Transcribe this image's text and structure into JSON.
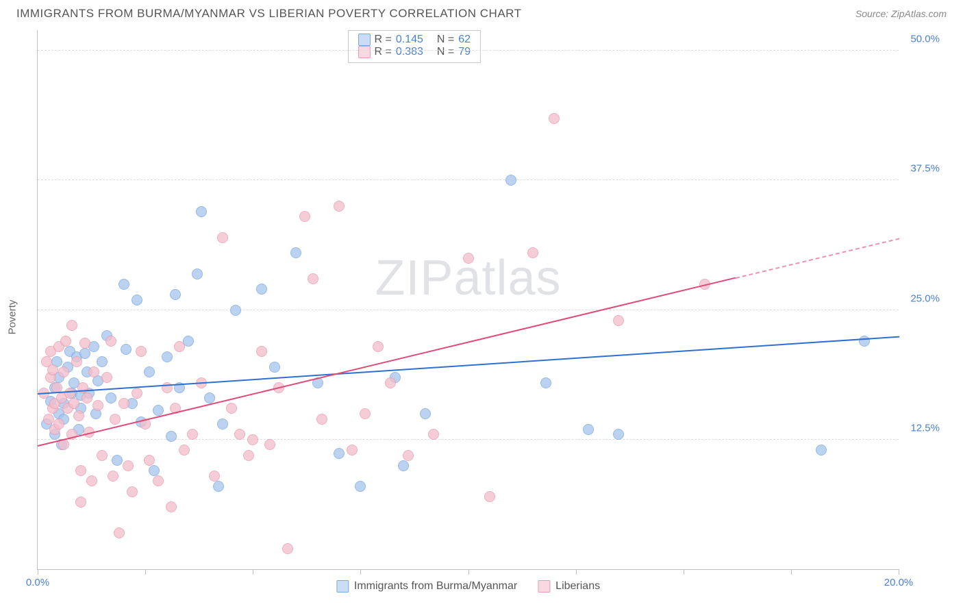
{
  "header": {
    "title": "IMMIGRANTS FROM BURMA/MYANMAR VS LIBERIAN POVERTY CORRELATION CHART",
    "source_prefix": "Source: ",
    "source": "ZipAtlas.com"
  },
  "chart": {
    "type": "scatter",
    "ylabel": "Poverty",
    "watermark": "ZIPatlas",
    "xlim": [
      0,
      20
    ],
    "ylim": [
      0,
      52
    ],
    "xtick_positions": [
      0,
      2.5,
      5,
      7.5,
      10,
      12.5,
      15,
      17.5,
      20
    ],
    "xtick_labels": {
      "0": "0.0%",
      "20": "20.0%"
    },
    "ytick_positions": [
      12.5,
      25.0,
      37.5,
      50.0
    ],
    "ytick_labels": [
      "12.5%",
      "25.0%",
      "37.5%",
      "50.0%"
    ],
    "grid_color": "#dcdcdc",
    "axis_color": "#bfbfbf",
    "tick_label_color": "#4a7fd6",
    "background_color": "#ffffff",
    "point_radius": 8,
    "point_border_width": 1.2,
    "point_fill_opacity": 0.32,
    "series": [
      {
        "id": "burma",
        "label": "Immigrants from Burma/Myanmar",
        "color_border": "#7aa7e0",
        "color_fill": "#a9c6ec",
        "R": "0.145",
        "N": "62",
        "trend": {
          "x1": 0,
          "y1": 17.0,
          "x2": 20,
          "y2": 22.5,
          "color": "#2e6fd0",
          "width": 2.5,
          "dash_from_x": null
        },
        "points": [
          [
            0.2,
            14.0
          ],
          [
            0.3,
            16.2
          ],
          [
            0.4,
            13.0
          ],
          [
            0.4,
            17.5
          ],
          [
            0.45,
            20.0
          ],
          [
            0.5,
            15.0
          ],
          [
            0.5,
            18.5
          ],
          [
            0.55,
            12.0
          ],
          [
            0.6,
            16.0
          ],
          [
            0.6,
            14.5
          ],
          [
            0.7,
            19.5
          ],
          [
            0.75,
            21.0
          ],
          [
            0.8,
            17.0
          ],
          [
            0.85,
            18.0
          ],
          [
            0.9,
            20.5
          ],
          [
            0.95,
            13.5
          ],
          [
            1.0,
            15.5
          ],
          [
            1.0,
            16.8
          ],
          [
            1.1,
            20.8
          ],
          [
            1.15,
            19.0
          ],
          [
            1.2,
            17.0
          ],
          [
            1.3,
            21.5
          ],
          [
            1.35,
            15.0
          ],
          [
            1.4,
            18.2
          ],
          [
            1.5,
            20.0
          ],
          [
            1.6,
            22.5
          ],
          [
            1.7,
            16.5
          ],
          [
            1.85,
            10.5
          ],
          [
            2.0,
            27.5
          ],
          [
            2.05,
            21.2
          ],
          [
            2.2,
            16.0
          ],
          [
            2.3,
            26.0
          ],
          [
            2.4,
            14.2
          ],
          [
            2.6,
            19.0
          ],
          [
            2.7,
            9.5
          ],
          [
            2.8,
            15.3
          ],
          [
            3.0,
            20.5
          ],
          [
            3.1,
            12.8
          ],
          [
            3.2,
            26.5
          ],
          [
            3.3,
            17.5
          ],
          [
            3.5,
            22.0
          ],
          [
            3.7,
            28.5
          ],
          [
            3.8,
            34.5
          ],
          [
            4.0,
            16.5
          ],
          [
            4.2,
            8.0
          ],
          [
            4.3,
            14.0
          ],
          [
            4.6,
            25.0
          ],
          [
            5.2,
            27.0
          ],
          [
            5.5,
            19.5
          ],
          [
            6.0,
            30.5
          ],
          [
            6.5,
            18.0
          ],
          [
            7.0,
            11.2
          ],
          [
            7.5,
            8.0
          ],
          [
            8.3,
            18.5
          ],
          [
            8.5,
            10.0
          ],
          [
            9.0,
            15.0
          ],
          [
            11.0,
            37.5
          ],
          [
            11.8,
            18.0
          ],
          [
            12.8,
            13.5
          ],
          [
            13.5,
            13.0
          ],
          [
            18.2,
            11.5
          ],
          [
            19.2,
            22.0
          ]
        ]
      },
      {
        "id": "liberian",
        "label": "Liberians",
        "color_border": "#e89bb0",
        "color_fill": "#f3bfcd",
        "R": "0.383",
        "N": "79",
        "trend": {
          "x1": 0,
          "y1": 12.0,
          "x2": 20,
          "y2": 32.0,
          "color": "#e04a77",
          "width": 2.2,
          "dash_from_x": 16.2
        },
        "points": [
          [
            0.15,
            17.0
          ],
          [
            0.2,
            20.0
          ],
          [
            0.25,
            14.5
          ],
          [
            0.3,
            18.5
          ],
          [
            0.3,
            21.0
          ],
          [
            0.35,
            15.5
          ],
          [
            0.35,
            19.2
          ],
          [
            0.4,
            16.0
          ],
          [
            0.4,
            13.5
          ],
          [
            0.45,
            17.5
          ],
          [
            0.5,
            14.0
          ],
          [
            0.5,
            21.5
          ],
          [
            0.55,
            16.5
          ],
          [
            0.6,
            12.0
          ],
          [
            0.6,
            19.0
          ],
          [
            0.65,
            22.0
          ],
          [
            0.7,
            15.5
          ],
          [
            0.75,
            17.0
          ],
          [
            0.8,
            13.0
          ],
          [
            0.8,
            23.5
          ],
          [
            0.85,
            16.0
          ],
          [
            0.9,
            20.0
          ],
          [
            0.95,
            14.8
          ],
          [
            1.0,
            9.5
          ],
          [
            1.0,
            6.5
          ],
          [
            1.05,
            17.5
          ],
          [
            1.1,
            21.8
          ],
          [
            1.15,
            16.5
          ],
          [
            1.2,
            13.2
          ],
          [
            1.25,
            8.5
          ],
          [
            1.3,
            19.0
          ],
          [
            1.4,
            15.8
          ],
          [
            1.5,
            11.0
          ],
          [
            1.6,
            18.5
          ],
          [
            1.7,
            22.0
          ],
          [
            1.75,
            9.0
          ],
          [
            1.8,
            14.5
          ],
          [
            1.9,
            3.5
          ],
          [
            2.0,
            16.0
          ],
          [
            2.1,
            10.0
          ],
          [
            2.2,
            7.5
          ],
          [
            2.3,
            17.0
          ],
          [
            2.4,
            21.0
          ],
          [
            2.5,
            14.0
          ],
          [
            2.6,
            10.5
          ],
          [
            2.8,
            8.5
          ],
          [
            3.0,
            17.5
          ],
          [
            3.1,
            6.0
          ],
          [
            3.2,
            15.5
          ],
          [
            3.3,
            21.5
          ],
          [
            3.4,
            11.5
          ],
          [
            3.6,
            13.0
          ],
          [
            3.8,
            18.0
          ],
          [
            4.1,
            9.0
          ],
          [
            4.3,
            32.0
          ],
          [
            4.5,
            15.5
          ],
          [
            4.7,
            13.0
          ],
          [
            4.9,
            11.0
          ],
          [
            5.0,
            12.5
          ],
          [
            5.2,
            21.0
          ],
          [
            5.4,
            12.0
          ],
          [
            5.6,
            17.5
          ],
          [
            5.8,
            2.0
          ],
          [
            6.2,
            34.0
          ],
          [
            6.4,
            28.0
          ],
          [
            6.6,
            14.5
          ],
          [
            7.0,
            35.0
          ],
          [
            7.3,
            11.5
          ],
          [
            7.6,
            15.0
          ],
          [
            7.9,
            21.5
          ],
          [
            8.2,
            18.0
          ],
          [
            8.6,
            11.0
          ],
          [
            9.2,
            13.0
          ],
          [
            10.0,
            30.0
          ],
          [
            10.5,
            7.0
          ],
          [
            11.5,
            30.5
          ],
          [
            12.0,
            43.5
          ],
          [
            13.5,
            24.0
          ],
          [
            15.5,
            27.5
          ]
        ]
      }
    ],
    "legend_bottom": [
      {
        "series": "burma"
      },
      {
        "series": "liberian"
      }
    ]
  }
}
